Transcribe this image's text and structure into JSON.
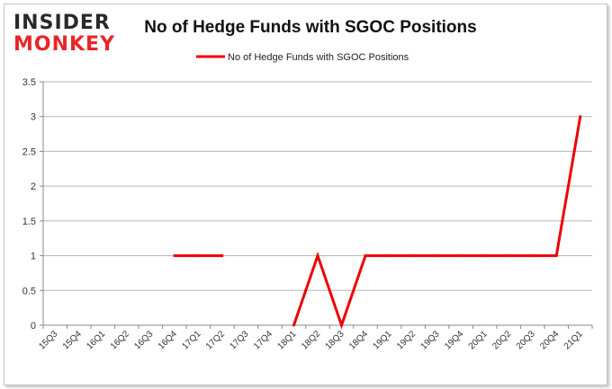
{
  "logo": {
    "line1": "INSIDER",
    "line2": "MONKEY"
  },
  "chart_data": {
    "type": "line",
    "title": "No of Hedge Funds with SGOC Positions",
    "xlabel": "",
    "ylabel": "",
    "categories": [
      "15Q3",
      "15Q4",
      "16Q1",
      "16Q2",
      "16Q3",
      "16Q4",
      "17Q1",
      "17Q2",
      "17Q3",
      "17Q4",
      "18Q1",
      "18Q2",
      "18Q3",
      "18Q4",
      "19Q1",
      "19Q2",
      "19Q3",
      "19Q4",
      "20Q1",
      "20Q2",
      "20Q3",
      "20Q4",
      "21Q1"
    ],
    "series": [
      {
        "name": "No of Hedge Funds with SGOC Positions",
        "values": [
          null,
          null,
          null,
          null,
          null,
          1,
          1,
          1,
          null,
          null,
          0,
          1,
          0,
          1,
          1,
          1,
          1,
          1,
          1,
          1,
          1,
          1,
          3
        ],
        "color": "#ee0000"
      }
    ],
    "yticks": [
      "0",
      "0.5",
      "1",
      "1.5",
      "2",
      "2.5",
      "3",
      "3.5"
    ],
    "ylim": [
      0,
      3.5
    ],
    "grid": true,
    "legend": "top-center"
  }
}
